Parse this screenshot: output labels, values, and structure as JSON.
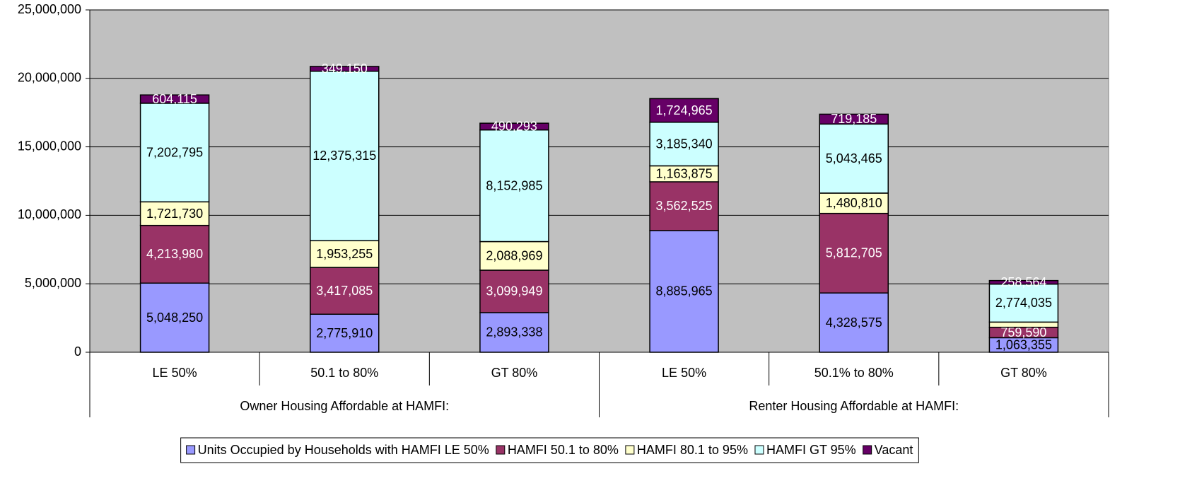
{
  "chart_data": {
    "type": "stacked_bar",
    "categories": [
      "LE 50%",
      "50.1 to 80%",
      "GT 80%",
      "LE 50%",
      "50.1% to 80%",
      "GT 80%"
    ],
    "groups": [
      "Owner Housing Affordable at HAMFI:",
      "Renter Housing Affordable at HAMFI:"
    ],
    "series": [
      {
        "name": "Units Occupied by Households with HAMFI LE 50%",
        "color": "#9999ff",
        "label_color": "#000000",
        "values": [
          5048250,
          2775910,
          2893338,
          8885965,
          4328575,
          1063355
        ],
        "value_labels": [
          "5,048,250",
          "2,775,910",
          "2,893,338",
          "8,885,965",
          "4,328,575",
          "1,063,355"
        ]
      },
      {
        "name": "HAMFI 50.1 to 80%",
        "color": "#993366",
        "label_color": "#ffffff",
        "values": [
          4213980,
          3417085,
          3099949,
          3562525,
          5812705,
          759590
        ],
        "value_labels": [
          "4,213,980",
          "3,417,085",
          "3,099,949",
          "3,562,525",
          "5,812,705",
          "759,590"
        ]
      },
      {
        "name": "HAMFI 80.1 to 95%",
        "color": "#ffffcc",
        "label_color": "#000000",
        "values": [
          1721730,
          1953255,
          2088969,
          1163875,
          1480810,
          380000
        ],
        "value_labels": [
          "1,721,730",
          "1,953,255",
          "2,088,969",
          "1,163,875",
          "1,480,810",
          null
        ]
      },
      {
        "name": "HAMFI GT 95%",
        "color": "#ccffff",
        "label_color": "#000000",
        "values": [
          7202795,
          12375315,
          8152985,
          3185340,
          5043465,
          2774035
        ],
        "value_labels": [
          "7,202,795",
          "12,375,315",
          "8,152,985",
          "3,185,340",
          "5,043,465",
          "2,774,035"
        ]
      },
      {
        "name": "Vacant",
        "color": "#660066",
        "label_color": "#ffffff",
        "values": [
          604115,
          349150,
          490293,
          1724965,
          719185,
          258564
        ],
        "value_labels": [
          "604,115",
          "349,150",
          "490,293",
          "1,724,965",
          "719,185",
          "258,564"
        ]
      }
    ],
    "ylim": [
      0,
      25000000
    ],
    "yticks": [
      0,
      {
        "value": 5000000,
        "label": "5,000,000"
      },
      {
        "value": 10000000,
        "label": "10,000,000"
      },
      {
        "value": 15000000,
        "label": "15,000,000"
      },
      {
        "value": 20000000,
        "label": "20,000,000"
      },
      {
        "value": 25000000,
        "label": "25,000,000"
      }
    ],
    "grid": true,
    "legend": "bottom",
    "plot_background": "#c0c0c0"
  }
}
